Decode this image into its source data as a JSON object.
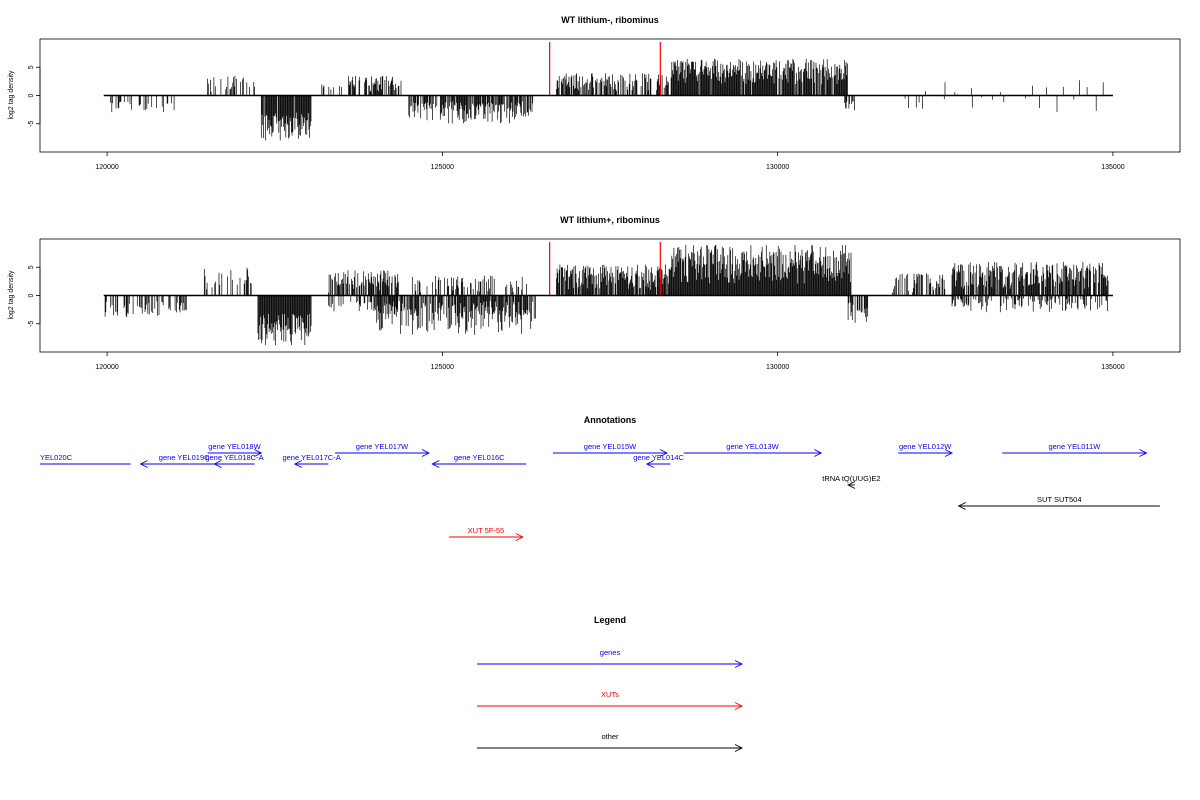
{
  "chart_data": [
    {
      "type": "bar",
      "title": "WT lithium-, ribominus",
      "ylabel": "log2 tag density",
      "xlim": [
        119000,
        136000
      ],
      "ylim": [
        -10,
        10
      ],
      "x_ticks": [
        120000,
        125000,
        130000,
        135000
      ],
      "y_ticks": [
        -5,
        0,
        5
      ],
      "markers": [
        126600,
        128250
      ],
      "colors": {
        "bars": "#000000",
        "markers": "#ff0000",
        "frame": "#000000"
      },
      "signal": [
        {
          "x": [
            120050,
            121000
          ],
          "y": [
            -3,
            -1
          ],
          "density": 0.25
        },
        {
          "x": [
            121500,
            122200
          ],
          "y": [
            0.5,
            3.5
          ],
          "density": 0.35
        },
        {
          "x": [
            122300,
            123050
          ],
          "y": [
            -8,
            -3
          ],
          "density": 0.95
        },
        {
          "x": [
            123150,
            123500
          ],
          "y": [
            0.5,
            2
          ],
          "density": 0.2
        },
        {
          "x": [
            123600,
            124400
          ],
          "y": [
            0.5,
            3.5
          ],
          "density": 0.55
        },
        {
          "x": [
            124500,
            126350
          ],
          "y": [
            -5,
            -1
          ],
          "density": 0.75
        },
        {
          "x": [
            126700,
            128400
          ],
          "y": [
            0.8,
            4
          ],
          "density": 0.65
        },
        {
          "x": [
            128400,
            130050
          ],
          "y": [
            2,
            6.5
          ],
          "density": 0.95
        },
        {
          "x": [
            130050,
            131050
          ],
          "y": [
            2,
            6.5
          ],
          "density": 0.9
        },
        {
          "x": [
            131000,
            131150
          ],
          "y": [
            -3,
            -1
          ],
          "density": 0.6
        },
        {
          "x": [
            131900,
            134900
          ],
          "y": [
            -3,
            3
          ],
          "density": 0.12
        }
      ]
    },
    {
      "type": "bar",
      "title": "WT lithium+, ribominus",
      "ylabel": "log2 tag density",
      "xlim": [
        119000,
        136000
      ],
      "ylim": [
        -10,
        10
      ],
      "x_ticks": [
        120000,
        125000,
        130000,
        135000
      ],
      "y_ticks": [
        -5,
        0,
        5
      ],
      "markers": [
        126600,
        128250
      ],
      "colors": {
        "bars": "#000000",
        "markers": "#ff0000",
        "frame": "#000000"
      },
      "signal": [
        {
          "x": [
            119950,
            121200
          ],
          "y": [
            -4,
            -1
          ],
          "density": 0.4
        },
        {
          "x": [
            121450,
            122150
          ],
          "y": [
            0.5,
            5
          ],
          "density": 0.45
        },
        {
          "x": [
            122250,
            123050
          ],
          "y": [
            -9,
            -3
          ],
          "density": 1.0
        },
        {
          "x": [
            123300,
            124350
          ],
          "y": [
            0.5,
            4.5
          ],
          "density": 0.7
        },
        {
          "x": [
            123300,
            124350
          ],
          "y": [
            -3,
            -1
          ],
          "density": 0.35
        },
        {
          "x": [
            124000,
            126400
          ],
          "y": [
            -7,
            -1
          ],
          "density": 0.85
        },
        {
          "x": [
            124500,
            126300
          ],
          "y": [
            0.5,
            3.5
          ],
          "density": 0.4
        },
        {
          "x": [
            126700,
            128400
          ],
          "y": [
            1,
            5.5
          ],
          "density": 0.9
        },
        {
          "x": [
            128400,
            131100
          ],
          "y": [
            2,
            9
          ],
          "density": 1.0
        },
        {
          "x": [
            131050,
            131350
          ],
          "y": [
            -5,
            -1
          ],
          "density": 0.7
        },
        {
          "x": [
            131700,
            132500
          ],
          "y": [
            0.5,
            4
          ],
          "density": 0.5
        },
        {
          "x": [
            132600,
            134950
          ],
          "y": [
            1,
            6
          ],
          "density": 0.85
        },
        {
          "x": [
            132600,
            134950
          ],
          "y": [
            -3,
            -0.5
          ],
          "density": 0.4
        }
      ]
    }
  ],
  "annotations": {
    "title": "Annotations",
    "xlim": [
      119000,
      136000
    ],
    "colors": {
      "gene": "#0000ff",
      "xut": "#ff0000",
      "other": "#000000"
    },
    "items": [
      {
        "label": "YEL020C",
        "class": "gene",
        "strand": "none",
        "start": 119000,
        "end": 120350,
        "row": 1
      },
      {
        "label": "gene YEL019C",
        "class": "gene",
        "strand": "-",
        "start": 120500,
        "end": 121800,
        "row": 1
      },
      {
        "label": "gene YEL018W",
        "class": "gene",
        "strand": "+",
        "start": 121500,
        "end": 122300,
        "row": 0
      },
      {
        "label": "gene YEL018C-A",
        "class": "gene",
        "strand": "-",
        "start": 121600,
        "end": 122200,
        "row": 1
      },
      {
        "label": "gene YEL017C-A",
        "class": "gene",
        "strand": "-",
        "start": 122800,
        "end": 123300,
        "row": 1
      },
      {
        "label": "gene YEL017W",
        "class": "gene",
        "strand": "+",
        "start": 123400,
        "end": 124800,
        "row": 0
      },
      {
        "label": "gene YEL016C",
        "class": "gene",
        "strand": "-",
        "start": 124850,
        "end": 126250,
        "row": 1
      },
      {
        "label": "gene YEL015W",
        "class": "gene",
        "strand": "+",
        "start": 126650,
        "end": 128350,
        "row": 0
      },
      {
        "label": "gene YEL014C",
        "class": "gene",
        "strand": "-",
        "start": 128050,
        "end": 128400,
        "row": 1
      },
      {
        "label": "gene YEL013W",
        "class": "gene",
        "strand": "+",
        "start": 128600,
        "end": 130650,
        "row": 0
      },
      {
        "label": "tRNA tQ(UUG)E2",
        "class": "other",
        "strand": "-",
        "start": 131050,
        "end": 131150,
        "row": 2
      },
      {
        "label": "gene YEL012W",
        "class": "gene",
        "strand": "+",
        "start": 131800,
        "end": 132600,
        "row": 0
      },
      {
        "label": "gene YEL011W",
        "class": "gene",
        "strand": "+",
        "start": 133350,
        "end": 135500,
        "row": 0
      },
      {
        "label": "SUT SUT504",
        "class": "other",
        "strand": "-",
        "start": 132700,
        "end": 135700,
        "row": 3
      },
      {
        "label": "XUT 5F-55",
        "class": "xut",
        "strand": "+",
        "start": 125100,
        "end": 126200,
        "row": 5
      }
    ]
  },
  "legend": {
    "title": "Legend",
    "entries": [
      {
        "label": "genes",
        "color": "#0000ff"
      },
      {
        "label": "XUTs",
        "color": "#ff0000"
      },
      {
        "label": "other",
        "color": "#000000"
      }
    ]
  }
}
